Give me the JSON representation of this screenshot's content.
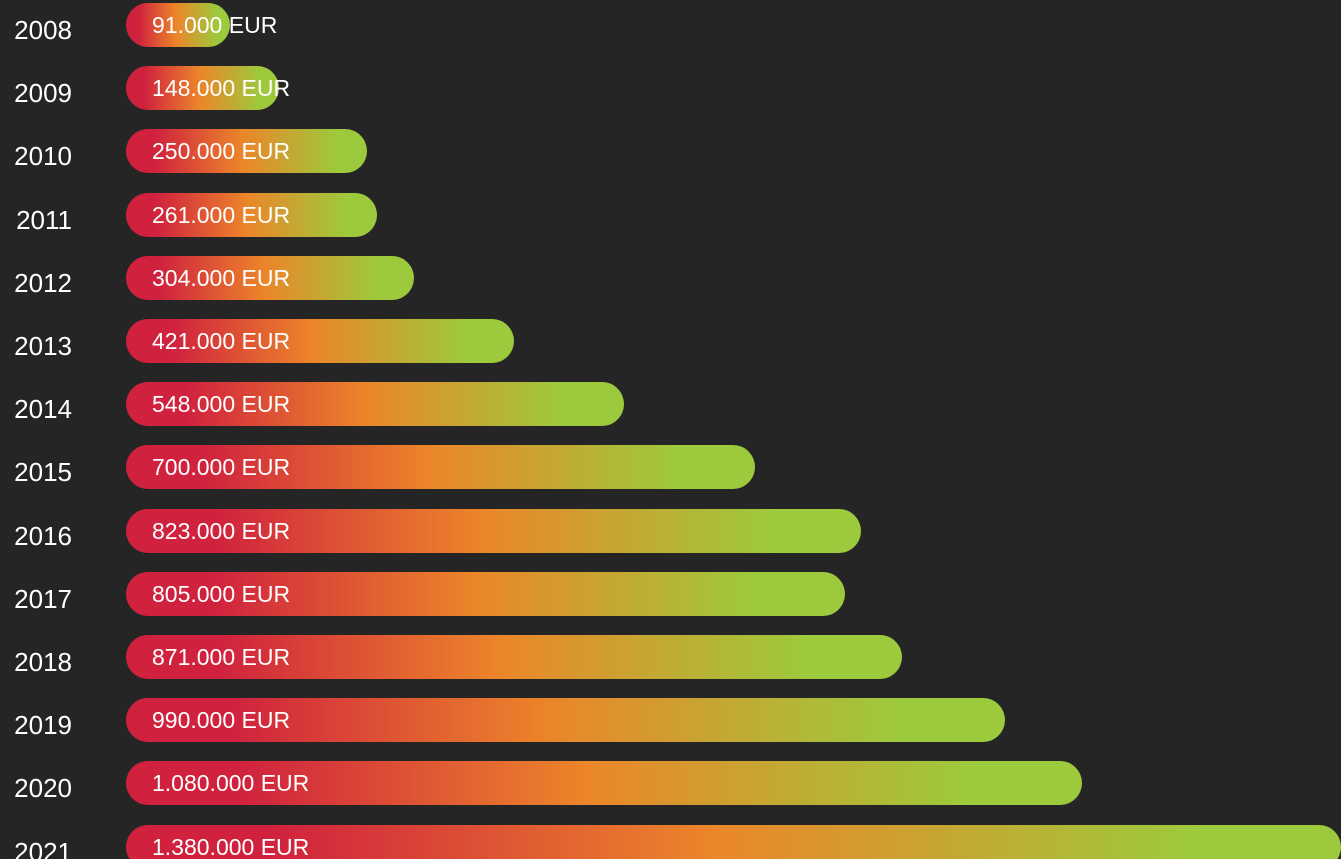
{
  "colors": {
    "background": "#252525",
    "gradient_start": "#d0223e",
    "gradient_mid": "#ec852a",
    "gradient_end": "#9dca3c",
    "text": "#ffffff"
  },
  "chart_data": {
    "type": "bar",
    "orientation": "horizontal",
    "categories": [
      "2008",
      "2009",
      "2010",
      "2011",
      "2012",
      "2013",
      "2014",
      "2015",
      "2016",
      "2017",
      "2018",
      "2019",
      "2020",
      "2021"
    ],
    "values": [
      91000,
      148000,
      250000,
      261000,
      304000,
      421000,
      548000,
      700000,
      823000,
      805000,
      871000,
      990000,
      1080000,
      1380000
    ],
    "value_labels": [
      "91.000 EUR",
      "148.000 EUR",
      "250.000 EUR",
      "261.000 EUR",
      "304.000 EUR",
      "421.000 EUR",
      "548.000 EUR",
      "700.000 EUR",
      "823.000 EUR",
      "805.000 EUR",
      "871.000 EUR",
      "990.000 EUR",
      "1.080.000 EUR",
      "1.380.000 EUR"
    ],
    "title": "",
    "xlabel": "",
    "ylabel": "",
    "grid": false,
    "legend": "none"
  }
}
